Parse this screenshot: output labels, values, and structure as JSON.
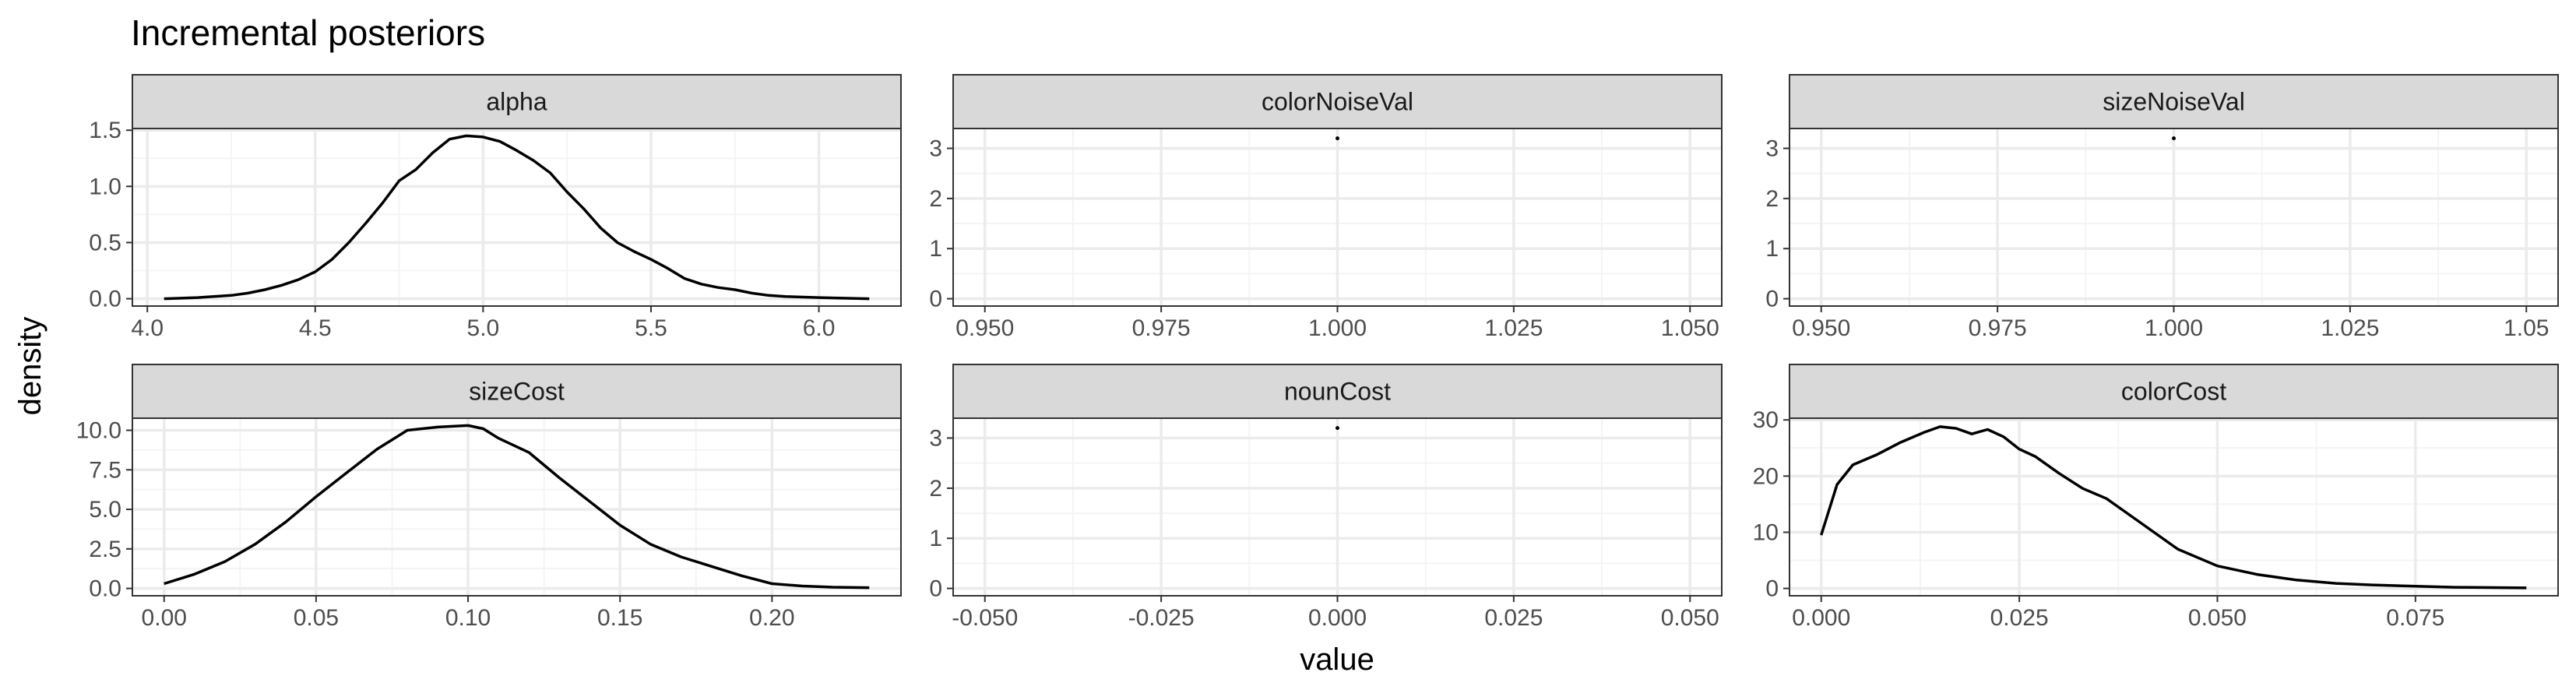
{
  "title": "Incremental posteriors",
  "xlabel": "value",
  "ylabel": "density",
  "colors": {
    "strip_fill": "#d9d9d9",
    "grid_major": "#ebebeb",
    "grid_minor": "#f4f4f4",
    "line": "#000000",
    "border": "#333333"
  },
  "chart_data": [
    {
      "type": "line",
      "facet": "alpha",
      "xlim": [
        4.05,
        6.15
      ],
      "ylim": [
        0,
        1.45
      ],
      "grid": true,
      "xticks": [
        4.0,
        4.5,
        5.0,
        5.5,
        6.0
      ],
      "xtick_labels": [
        "4.0",
        "4.5",
        "5.0",
        "5.5",
        "6.0"
      ],
      "yticks": [
        0,
        0.5,
        1.0,
        1.5
      ],
      "ytick_labels": [
        "0.0",
        "0.5",
        "1.0",
        "1.5"
      ],
      "x": [
        4.05,
        4.15,
        4.25,
        4.3,
        4.35,
        4.4,
        4.45,
        4.5,
        4.55,
        4.6,
        4.65,
        4.7,
        4.75,
        4.8,
        4.85,
        4.9,
        4.95,
        5.0,
        5.05,
        5.1,
        5.15,
        5.2,
        5.25,
        5.3,
        5.35,
        5.4,
        5.45,
        5.5,
        5.55,
        5.6,
        5.65,
        5.7,
        5.75,
        5.8,
        5.85,
        5.9,
        6.0,
        6.15
      ],
      "y": [
        0.0,
        0.01,
        0.03,
        0.05,
        0.08,
        0.12,
        0.17,
        0.24,
        0.35,
        0.5,
        0.67,
        0.85,
        1.05,
        1.15,
        1.3,
        1.42,
        1.45,
        1.44,
        1.4,
        1.32,
        1.23,
        1.12,
        0.95,
        0.8,
        0.63,
        0.5,
        0.42,
        0.35,
        0.27,
        0.18,
        0.13,
        0.1,
        0.08,
        0.05,
        0.03,
        0.02,
        0.01,
        0.0
      ]
    },
    {
      "type": "scatter",
      "facet": "colorNoiseVal",
      "xlim": [
        0.95,
        1.05
      ],
      "ylim": [
        0,
        3.25
      ],
      "grid": true,
      "xticks": [
        0.95,
        0.975,
        1.0,
        1.025,
        1.05
      ],
      "xtick_labels": [
        "0.950",
        "0.975",
        "1.000",
        "1.025",
        "1.050"
      ],
      "yticks": [
        0,
        1,
        2,
        3
      ],
      "ytick_labels": [
        "0",
        "1",
        "2",
        "3"
      ],
      "x": [
        1.0
      ],
      "y": [
        3.2
      ]
    },
    {
      "type": "scatter",
      "facet": "sizeNoiseVal",
      "xlim": [
        0.95,
        1.05
      ],
      "ylim": [
        0,
        3.25
      ],
      "grid": true,
      "xticks": [
        0.95,
        0.975,
        1.0,
        1.025,
        1.05
      ],
      "xtick_labels": [
        "0.950",
        "0.975",
        "1.000",
        "1.025",
        "1.05"
      ],
      "yticks": [
        0,
        1,
        2,
        3
      ],
      "ytick_labels": [
        "0",
        "1",
        "2",
        "3"
      ],
      "x": [
        1.0
      ],
      "y": [
        3.2
      ]
    },
    {
      "type": "line",
      "facet": "sizeCost",
      "xlim": [
        0.0,
        0.232
      ],
      "ylim": [
        0,
        10.3
      ],
      "grid": true,
      "xticks": [
        0.0,
        0.05,
        0.1,
        0.15,
        0.2
      ],
      "xtick_labels": [
        "0.00",
        "0.05",
        "0.10",
        "0.15",
        "0.20"
      ],
      "yticks": [
        0,
        2.5,
        5.0,
        7.5,
        10.0
      ],
      "ytick_labels": [
        "0.0",
        "2.5",
        "5.0",
        "7.5",
        "10.0"
      ],
      "x": [
        0.0,
        0.01,
        0.02,
        0.03,
        0.04,
        0.05,
        0.06,
        0.07,
        0.08,
        0.09,
        0.1,
        0.105,
        0.11,
        0.12,
        0.13,
        0.14,
        0.15,
        0.16,
        0.17,
        0.18,
        0.19,
        0.2,
        0.21,
        0.22,
        0.232
      ],
      "y": [
        0.3,
        0.9,
        1.7,
        2.8,
        4.2,
        5.8,
        7.3,
        8.8,
        10.0,
        10.2,
        10.3,
        10.1,
        9.5,
        8.6,
        7.0,
        5.5,
        4.0,
        2.8,
        2.0,
        1.4,
        0.8,
        0.3,
        0.15,
        0.08,
        0.05
      ]
    },
    {
      "type": "scatter",
      "facet": "nounCost",
      "xlim": [
        -0.05,
        0.05
      ],
      "ylim": [
        0,
        3.25
      ],
      "grid": true,
      "xticks": [
        -0.05,
        -0.025,
        0.0,
        0.025,
        0.05
      ],
      "xtick_labels": [
        "-0.050",
        "-0.025",
        "0.000",
        "0.025",
        "0.050"
      ],
      "yticks": [
        0,
        1,
        2,
        3
      ],
      "ytick_labels": [
        "0",
        "1",
        "2",
        "3"
      ],
      "x": [
        0.0
      ],
      "y": [
        3.2
      ]
    },
    {
      "type": "line",
      "facet": "colorCost",
      "xlim": [
        0.0,
        0.089
      ],
      "ylim": [
        0,
        29
      ],
      "grid": true,
      "xticks": [
        0.0,
        0.025,
        0.05,
        0.075
      ],
      "xtick_labels": [
        "0.000",
        "0.025",
        "0.050",
        "0.075"
      ],
      "yticks": [
        0,
        10,
        20,
        30
      ],
      "ytick_labels": [
        "0",
        "10",
        "20",
        "30"
      ],
      "x": [
        0.0,
        0.002,
        0.004,
        0.007,
        0.01,
        0.013,
        0.015,
        0.017,
        0.019,
        0.021,
        0.023,
        0.025,
        0.027,
        0.03,
        0.033,
        0.036,
        0.04,
        0.045,
        0.05,
        0.055,
        0.06,
        0.065,
        0.07,
        0.075,
        0.08,
        0.089
      ],
      "y": [
        9.5,
        18.5,
        22.0,
        23.8,
        26.0,
        27.8,
        28.8,
        28.5,
        27.5,
        28.3,
        27.0,
        24.8,
        23.5,
        20.5,
        17.8,
        16.0,
        12.0,
        7.0,
        4.0,
        2.5,
        1.5,
        0.9,
        0.6,
        0.4,
        0.2,
        0.1
      ]
    }
  ]
}
